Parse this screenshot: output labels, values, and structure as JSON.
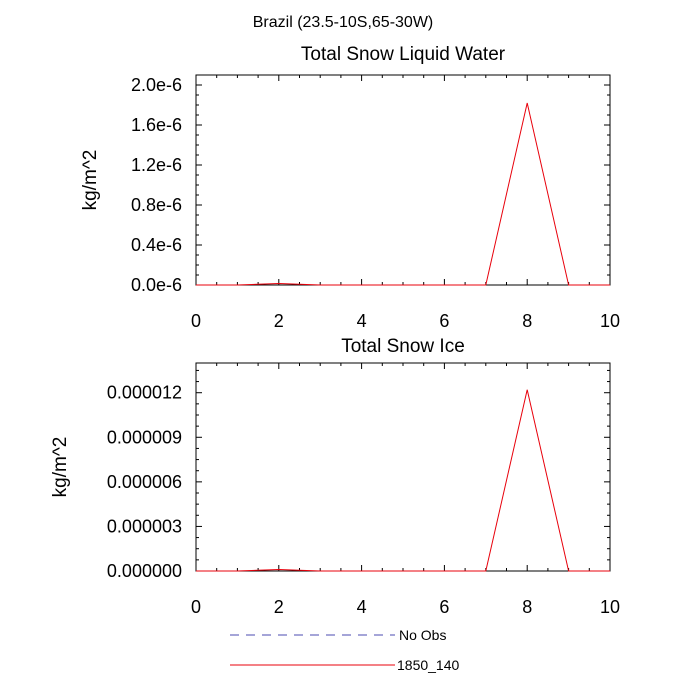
{
  "figure": {
    "suptitle": "Brazil (23.5-10S,65-30W)"
  },
  "chart_data": [
    {
      "type": "line",
      "title": "Total Snow Liquid Water",
      "xlabel": "",
      "ylabel": "kg/m^2",
      "xlim": [
        0,
        10
      ],
      "ylim": [
        0,
        2.1e-06
      ],
      "xticks": [
        0,
        2,
        4,
        6,
        8,
        10
      ],
      "yticks": [
        0,
        4e-07,
        8e-07,
        1.2e-06,
        1.6e-06,
        2e-06
      ],
      "ytick_labels": [
        "0.0e-6",
        "0.4e-6",
        "0.8e-6",
        "1.2e-6",
        "1.6e-6",
        "2.0e-6"
      ],
      "series": [
        {
          "name": "1850_140",
          "color": "#e8000b",
          "x": [
            0,
            1,
            2,
            3,
            4,
            5,
            6,
            7,
            8,
            9,
            10
          ],
          "values": [
            0,
            0,
            1.5e-08,
            0,
            0,
            0,
            0,
            0,
            1.82e-06,
            0,
            0
          ]
        }
      ]
    },
    {
      "type": "line",
      "title": "Total Snow Ice",
      "xlabel": "",
      "ylabel": "kg/m^2",
      "xlim": [
        0,
        10
      ],
      "ylim": [
        0,
        1.4e-05
      ],
      "xticks": [
        0,
        2,
        4,
        6,
        8,
        10
      ],
      "yticks": [
        0,
        3e-06,
        6e-06,
        9e-06,
        1.2e-05
      ],
      "ytick_labels": [
        "0.000000",
        "0.000003",
        "0.000006",
        "0.000009",
        "0.000012"
      ],
      "series": [
        {
          "name": "1850_140",
          "color": "#e8000b",
          "x": [
            0,
            1,
            2,
            3,
            4,
            5,
            6,
            7,
            8,
            9,
            10
          ],
          "values": [
            0,
            0,
            1e-07,
            0,
            0,
            0,
            0,
            0,
            1.22e-05,
            0,
            0
          ]
        }
      ]
    }
  ],
  "legend": {
    "entries": [
      {
        "label": "No Obs",
        "color": "#4b4bb0",
        "style": "dashed"
      },
      {
        "label": "1850_140",
        "color": "#e8000b",
        "style": "solid"
      }
    ]
  }
}
